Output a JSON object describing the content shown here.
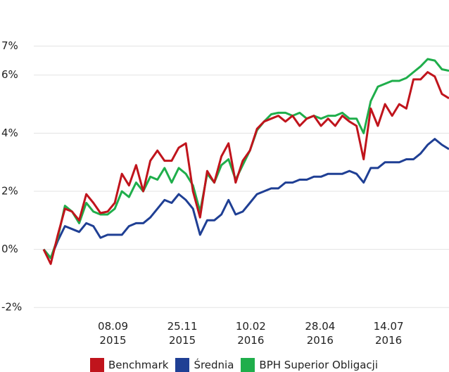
{
  "chart_data": {
    "type": "line",
    "x": [
      "2015-06-22",
      "2015-06-30",
      "2015-07-08",
      "2015-07-16",
      "2015-07-24",
      "2015-08-01",
      "2015-08-09",
      "2015-08-17",
      "2015-08-25",
      "2015-09-02",
      "2015-09-10",
      "2015-09-18",
      "2015-09-26",
      "2015-10-04",
      "2015-10-12",
      "2015-10-20",
      "2015-10-28",
      "2015-11-05",
      "2015-11-13",
      "2015-11-21",
      "2015-11-29",
      "2015-12-07",
      "2015-12-15",
      "2015-12-23",
      "2015-12-31",
      "2016-01-08",
      "2016-01-16",
      "2016-01-24",
      "2016-02-01",
      "2016-02-09",
      "2016-02-17",
      "2016-02-25",
      "2016-03-04",
      "2016-03-12",
      "2016-03-20",
      "2016-03-28",
      "2016-04-05",
      "2016-04-13",
      "2016-04-21",
      "2016-04-29",
      "2016-05-07",
      "2016-05-15",
      "2016-05-23",
      "2016-05-31",
      "2016-06-08",
      "2016-06-16",
      "2016-06-24",
      "2016-07-02",
      "2016-07-10",
      "2016-07-18",
      "2016-07-26",
      "2016-08-03",
      "2016-08-11",
      "2016-08-19",
      "2016-08-27",
      "2016-09-04",
      "2016-09-12",
      "2016-09-20"
    ],
    "series": [
      {
        "name": "Benchmark",
        "color": "#c0141c",
        "values": [
          0,
          -0.5,
          0.5,
          1.4,
          1.3,
          1.0,
          1.9,
          1.6,
          1.25,
          1.3,
          1.6,
          2.6,
          2.2,
          2.9,
          2.0,
          3.05,
          3.4,
          3.05,
          3.05,
          3.5,
          3.65,
          2.0,
          1.1,
          2.7,
          2.3,
          3.2,
          3.65,
          2.3,
          3.05,
          3.4,
          4.15,
          4.4,
          4.5,
          4.6,
          4.4,
          4.6,
          4.25,
          4.5,
          4.6,
          4.25,
          4.5,
          4.25,
          4.6,
          4.4,
          4.25,
          3.1,
          4.85,
          4.25,
          5.0,
          4.6,
          5.0,
          4.85,
          5.85,
          5.85,
          6.1,
          5.95,
          5.35,
          5.2
        ]
      },
      {
        "name": "Średnia",
        "color": "#1f3f94",
        "values": [
          0,
          -0.3,
          0.3,
          0.8,
          0.7,
          0.6,
          0.9,
          0.8,
          0.4,
          0.5,
          0.5,
          0.5,
          0.8,
          0.9,
          0.9,
          1.1,
          1.4,
          1.7,
          1.6,
          1.9,
          1.7,
          1.4,
          0.5,
          1.0,
          1.0,
          1.2,
          1.7,
          1.2,
          1.3,
          1.6,
          1.9,
          2.0,
          2.1,
          2.1,
          2.3,
          2.3,
          2.4,
          2.4,
          2.5,
          2.5,
          2.6,
          2.6,
          2.6,
          2.7,
          2.6,
          2.3,
          2.8,
          2.8,
          3.0,
          3.0,
          3.0,
          3.1,
          3.1,
          3.3,
          3.6,
          3.8,
          3.6,
          3.45
        ]
      },
      {
        "name": "BPH Superior Obligacji",
        "color": "#1fae4b",
        "values": [
          0,
          -0.3,
          0.4,
          1.5,
          1.3,
          0.9,
          1.6,
          1.3,
          1.2,
          1.2,
          1.4,
          2.0,
          1.8,
          2.3,
          2.0,
          2.5,
          2.4,
          2.8,
          2.3,
          2.8,
          2.6,
          2.2,
          1.3,
          2.6,
          2.3,
          2.9,
          3.1,
          2.4,
          2.9,
          3.4,
          4.1,
          4.4,
          4.65,
          4.7,
          4.7,
          4.6,
          4.7,
          4.5,
          4.6,
          4.5,
          4.6,
          4.6,
          4.7,
          4.5,
          4.5,
          4.0,
          5.1,
          5.6,
          5.7,
          5.8,
          5.8,
          5.9,
          6.1,
          6.3,
          6.55,
          6.5,
          6.2,
          6.15
        ]
      }
    ],
    "xlim": [
      "2015-06-22",
      "2016-09-20"
    ],
    "xticks": [
      {
        "value": "2015-09-08",
        "label": "08.09\n2015"
      },
      {
        "value": "2015-11-25",
        "label": "25.11\n2015"
      },
      {
        "value": "2016-02-10",
        "label": "10.02\n2016"
      },
      {
        "value": "2016-04-28",
        "label": "28.04\n2016"
      },
      {
        "value": "2016-07-14",
        "label": "14.07\n2016"
      }
    ],
    "ylim": [
      -2.6,
      8.1
    ],
    "yticks": [
      {
        "value": 7,
        "label": "7%"
      },
      {
        "value": 6,
        "label": "6%"
      },
      {
        "value": 4,
        "label": "4%"
      },
      {
        "value": 2,
        "label": "2%"
      },
      {
        "value": 0,
        "label": "0%"
      },
      {
        "value": -2,
        "label": "-2%"
      }
    ],
    "grid": true
  }
}
